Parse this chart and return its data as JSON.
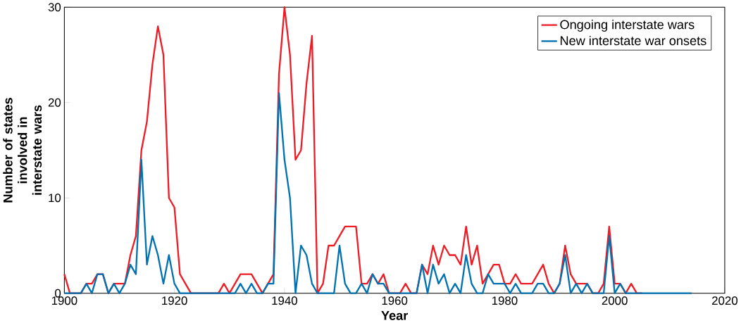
{
  "chart_data": {
    "type": "line",
    "xlabel": "Year",
    "ylabel": "Number of states involved in interstate wars",
    "x": [
      1900,
      1901,
      1902,
      1903,
      1904,
      1905,
      1906,
      1907,
      1908,
      1909,
      1910,
      1911,
      1912,
      1913,
      1914,
      1915,
      1916,
      1917,
      1918,
      1919,
      1920,
      1921,
      1922,
      1923,
      1924,
      1925,
      1926,
      1927,
      1928,
      1929,
      1930,
      1931,
      1932,
      1933,
      1934,
      1935,
      1936,
      1937,
      1938,
      1939,
      1940,
      1941,
      1942,
      1943,
      1944,
      1945,
      1946,
      1947,
      1948,
      1949,
      1950,
      1951,
      1952,
      1953,
      1954,
      1955,
      1956,
      1957,
      1958,
      1959,
      1960,
      1961,
      1962,
      1963,
      1964,
      1965,
      1966,
      1967,
      1968,
      1969,
      1970,
      1971,
      1972,
      1973,
      1974,
      1975,
      1976,
      1977,
      1978,
      1979,
      1980,
      1981,
      1982,
      1983,
      1984,
      1985,
      1986,
      1987,
      1988,
      1989,
      1990,
      1991,
      1992,
      1993,
      1994,
      1995,
      1996,
      1997,
      1998,
      1999,
      2000,
      2001,
      2002,
      2003,
      2004,
      2005,
      2006,
      2007,
      2008,
      2009,
      2010,
      2011,
      2012,
      2013,
      2014
    ],
    "series": [
      {
        "name": "Ongoing interstate wars",
        "color": "#ee1c25",
        "values": [
          2,
          0,
          0,
          0,
          1,
          1,
          2,
          2,
          0,
          1,
          1,
          1,
          4,
          6,
          15,
          18,
          24,
          28,
          25,
          10,
          9,
          2,
          1,
          0,
          0,
          0,
          0,
          0,
          0,
          1,
          0,
          1,
          2,
          2,
          2,
          1,
          0,
          1,
          2,
          23,
          30,
          25,
          14,
          15,
          22,
          27,
          0,
          1,
          5,
          5,
          6,
          7,
          7,
          7,
          1,
          1,
          2,
          1,
          2,
          0,
          0,
          0,
          1,
          0,
          0,
          3,
          2,
          5,
          3,
          5,
          4,
          4,
          3,
          7,
          3,
          5,
          1,
          2,
          3,
          3,
          1,
          1,
          2,
          1,
          1,
          1,
          2,
          3,
          1,
          0,
          1,
          5,
          2,
          1,
          1,
          1,
          0,
          0,
          1,
          7,
          1,
          1,
          0,
          1,
          0,
          0,
          null,
          null,
          null,
          null,
          null,
          null,
          null,
          null,
          null
        ]
      },
      {
        "name": "New interstate war onsets",
        "color": "#0072b1",
        "values": [
          0,
          0,
          0,
          0,
          1,
          0,
          2,
          2,
          0,
          1,
          0,
          1,
          3,
          2,
          14,
          3,
          6,
          4,
          1,
          4,
          1,
          0,
          0,
          0,
          0,
          0,
          0,
          0,
          0,
          0,
          0,
          0,
          1,
          0,
          1,
          0,
          0,
          1,
          1,
          21,
          14,
          10,
          0,
          5,
          4,
          1,
          0,
          0,
          0,
          0,
          5,
          1,
          0,
          0,
          1,
          0,
          2,
          1,
          1,
          0,
          0,
          0,
          0,
          0,
          0,
          3,
          0,
          3,
          1,
          2,
          0,
          1,
          0,
          4,
          1,
          0,
          0,
          2,
          1,
          1,
          1,
          0,
          1,
          0,
          0,
          0,
          1,
          1,
          0,
          0,
          1,
          4,
          0,
          1,
          0,
          1,
          0,
          0,
          0,
          6,
          0,
          1,
          0,
          0,
          0,
          0,
          0,
          0,
          0,
          0,
          0,
          0,
          0,
          0,
          0
        ]
      }
    ],
    "xlim": [
      1900,
      2020
    ],
    "xticks": [
      1900,
      1920,
      1940,
      1960,
      1980,
      2000,
      2020
    ],
    "ylim": [
      0,
      30
    ],
    "yticks": [
      0,
      10,
      20,
      30
    ],
    "legend": "top right",
    "grid": false,
    "marker": "none",
    "line_style": "solid"
  }
}
